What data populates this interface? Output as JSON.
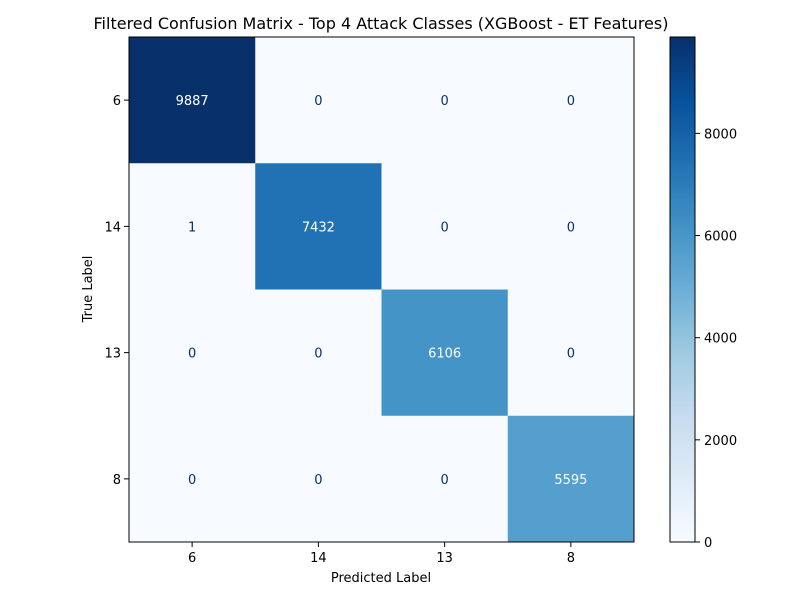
{
  "chart_data": {
    "type": "heatmap",
    "title": "Filtered Confusion Matrix - Top 4 Attack Classes (XGBoost - ET Features)",
    "xlabel": "Predicted Label",
    "ylabel": "True Label",
    "x_categories": [
      "6",
      "14",
      "13",
      "8"
    ],
    "y_categories": [
      "6",
      "14",
      "13",
      "8"
    ],
    "values": [
      [
        9887,
        0,
        0,
        0
      ],
      [
        1,
        7432,
        0,
        0
      ],
      [
        0,
        0,
        6106,
        0
      ],
      [
        0,
        0,
        0,
        5595
      ]
    ],
    "colormap": "Blues",
    "colorbar": {
      "range": [
        0,
        9887
      ],
      "ticks": [
        0,
        2000,
        4000,
        6000,
        8000
      ],
      "tick_labels": [
        "0",
        "2000",
        "4000",
        "6000",
        "8000"
      ]
    },
    "grid": false,
    "text_colors": {
      "dark_cell": "#ffffff",
      "light_cell": "#08306b"
    }
  }
}
